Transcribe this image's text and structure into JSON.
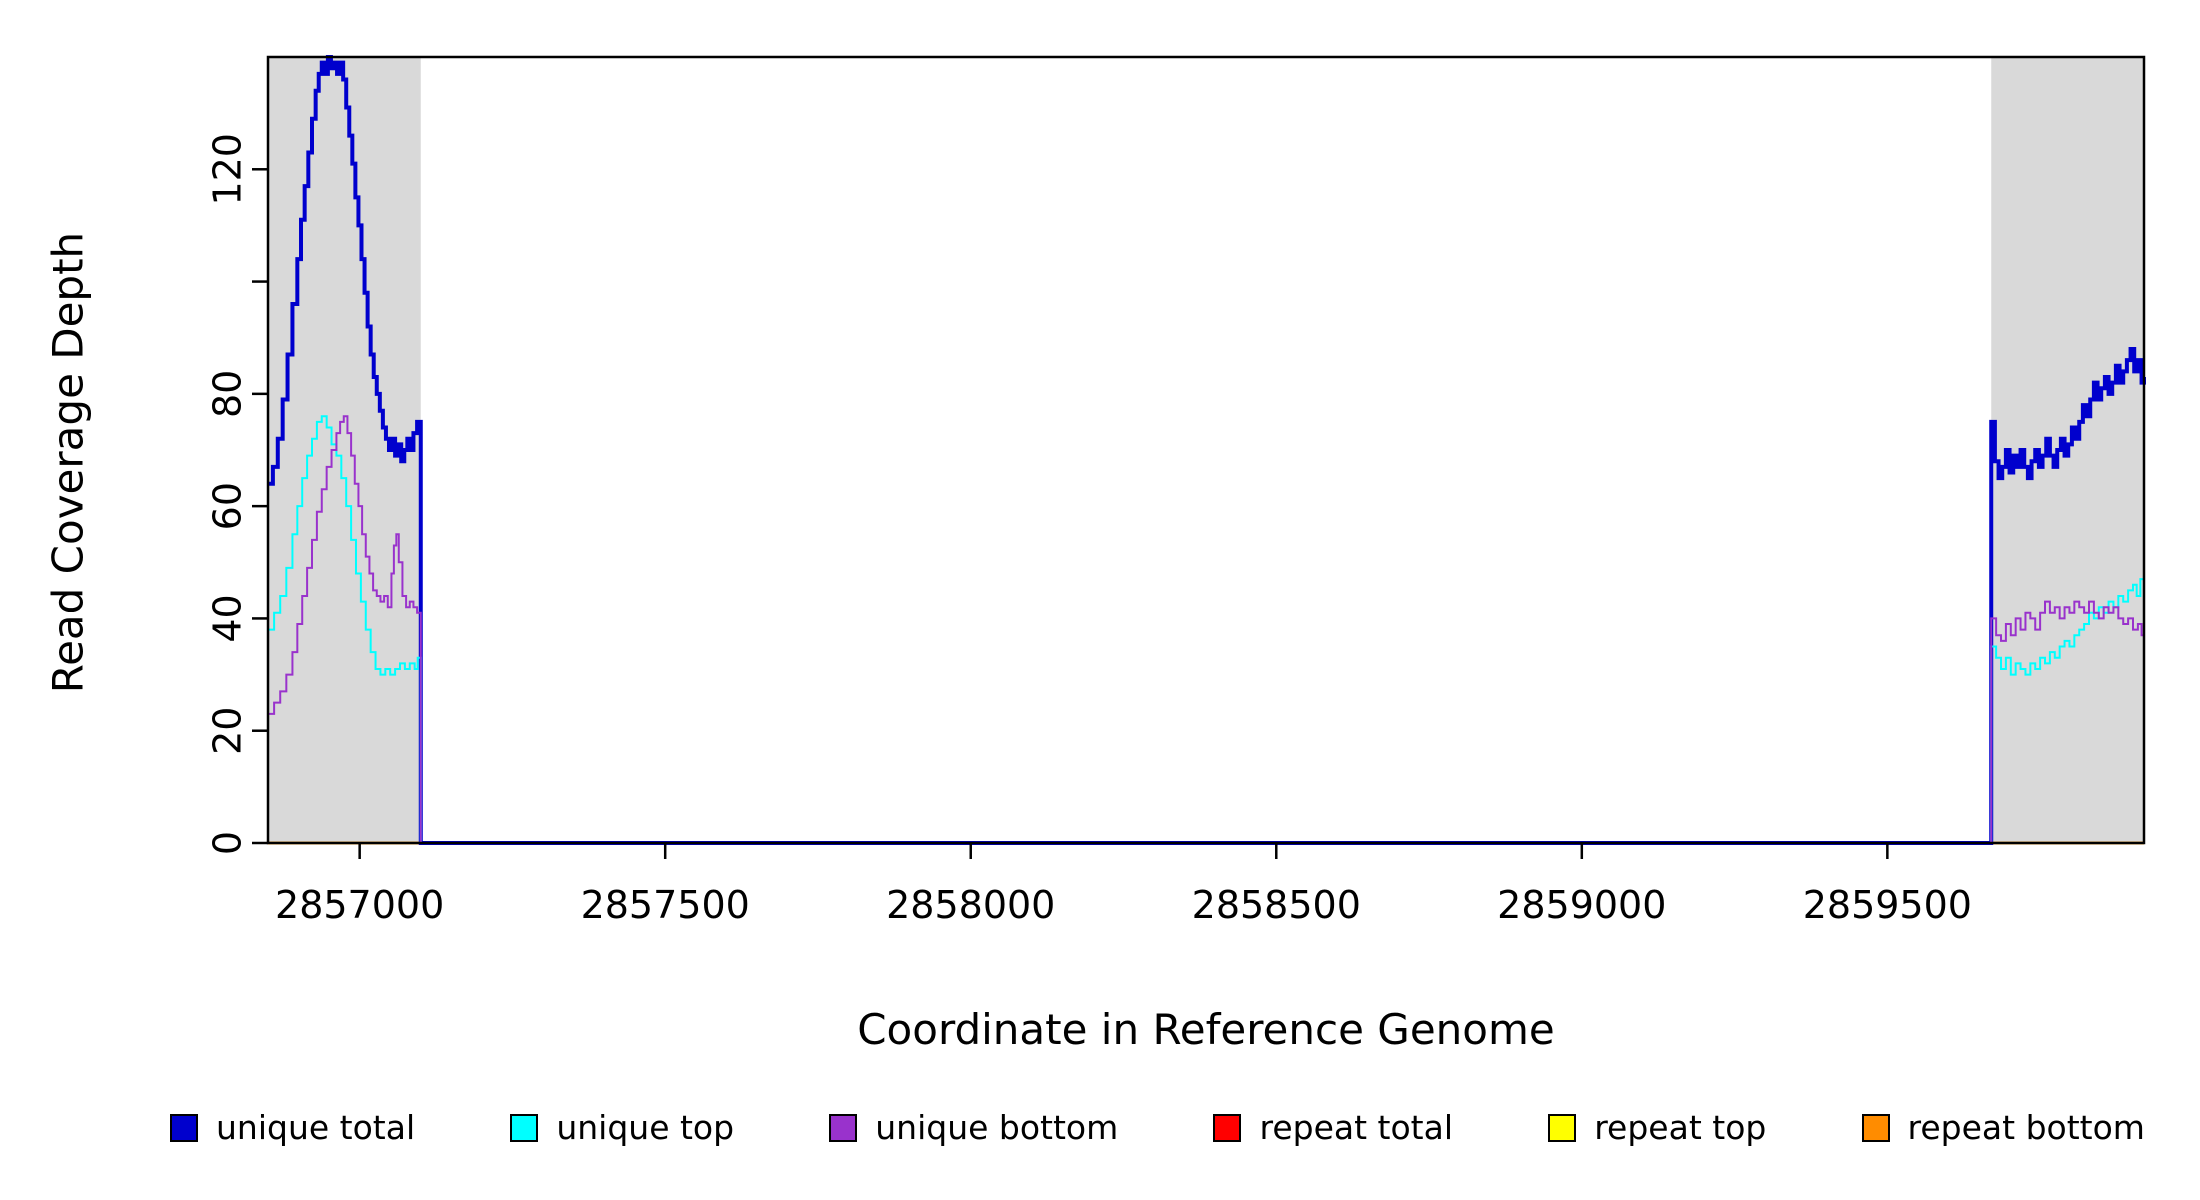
{
  "figure": {
    "background": "#FFFFFF"
  },
  "chart_data": {
    "type": "line",
    "title": "",
    "xlabel": "Coordinate in Reference Genome",
    "ylabel": "Read Coverage Depth",
    "xlim": [
      2856850,
      2859920
    ],
    "ylim": [
      0,
      140
    ],
    "grid": false,
    "legend_position": "bottom",
    "x_ticks": [
      {
        "value": 2857000,
        "label": "2857000"
      },
      {
        "value": 2857500,
        "label": "2857500"
      },
      {
        "value": 2858000,
        "label": "2858000"
      },
      {
        "value": 2858500,
        "label": "2858500"
      },
      {
        "value": 2859000,
        "label": "2859000"
      },
      {
        "value": 2859500,
        "label": "2859500"
      }
    ],
    "y_ticks": [
      {
        "value": 0,
        "label": "0"
      },
      {
        "value": 20,
        "label": "20"
      },
      {
        "value": 40,
        "label": "40"
      },
      {
        "value": 60,
        "label": "60"
      },
      {
        "value": 80,
        "label": "80"
      },
      {
        "value": 100,
        "label": ""
      },
      {
        "value": 120,
        "label": "120"
      }
    ],
    "highlight_color": "#D9D9D9",
    "highlight_regions": [
      {
        "x0": 2856850,
        "x1": 2857100
      },
      {
        "x0": 2859670,
        "x1": 2859920
      }
    ],
    "legend": [
      {
        "label": "unique total",
        "color": "#0000CD"
      },
      {
        "label": "unique top",
        "color": "#00FFFF"
      },
      {
        "label": "unique bottom",
        "color": "#9932CC"
      },
      {
        "label": "repeat total",
        "color": "#FF0000"
      },
      {
        "label": "repeat top",
        "color": "#FFFF00"
      },
      {
        "label": "repeat bottom",
        "color": "#FF8C00"
      }
    ],
    "series": [
      {
        "id": "repeat-total",
        "name": "repeat total",
        "color": "#FF0000",
        "width": 2.5,
        "points": [
          [
            2856850,
            0
          ],
          [
            2859920,
            0
          ]
        ]
      },
      {
        "id": "repeat-top",
        "name": "repeat top",
        "color": "#FFFF00",
        "width": 2.5,
        "points": [
          [
            2856850,
            0
          ],
          [
            2859920,
            0
          ]
        ]
      },
      {
        "id": "repeat-bottom",
        "name": "repeat bottom",
        "color": "#FF8C00",
        "width": 2.5,
        "points": [
          [
            2856850,
            0
          ],
          [
            2859920,
            0
          ]
        ]
      },
      {
        "id": "unique-total",
        "name": "unique total",
        "color": "#0000CD",
        "width": 4,
        "points": [
          [
            2856850,
            64
          ],
          [
            2856858,
            67
          ],
          [
            2856866,
            72
          ],
          [
            2856874,
            79
          ],
          [
            2856882,
            87
          ],
          [
            2856890,
            96
          ],
          [
            2856898,
            104
          ],
          [
            2856904,
            111
          ],
          [
            2856910,
            117
          ],
          [
            2856916,
            123
          ],
          [
            2856922,
            129
          ],
          [
            2856928,
            134
          ],
          [
            2856933,
            137
          ],
          [
            2856938,
            139
          ],
          [
            2856943,
            137
          ],
          [
            2856948,
            140
          ],
          [
            2856953,
            138
          ],
          [
            2856958,
            139
          ],
          [
            2856963,
            137
          ],
          [
            2856968,
            139
          ],
          [
            2856973,
            136
          ],
          [
            2856978,
            131
          ],
          [
            2856983,
            126
          ],
          [
            2856988,
            121
          ],
          [
            2856993,
            115
          ],
          [
            2856998,
            110
          ],
          [
            2857003,
            104
          ],
          [
            2857008,
            98
          ],
          [
            2857013,
            92
          ],
          [
            2857018,
            87
          ],
          [
            2857023,
            83
          ],
          [
            2857028,
            80
          ],
          [
            2857033,
            77
          ],
          [
            2857038,
            74
          ],
          [
            2857043,
            72
          ],
          [
            2857048,
            70
          ],
          [
            2857053,
            72
          ],
          [
            2857058,
            69
          ],
          [
            2857063,
            71
          ],
          [
            2857068,
            68
          ],
          [
            2857073,
            70
          ],
          [
            2857078,
            72
          ],
          [
            2857083,
            70
          ],
          [
            2857088,
            73
          ],
          [
            2857094,
            75
          ],
          [
            2857100,
            0
          ],
          [
            2859670,
            75
          ],
          [
            2859676,
            68
          ],
          [
            2859682,
            65
          ],
          [
            2859688,
            67
          ],
          [
            2859694,
            70
          ],
          [
            2859700,
            66
          ],
          [
            2859706,
            69
          ],
          [
            2859712,
            67
          ],
          [
            2859718,
            70
          ],
          [
            2859724,
            67
          ],
          [
            2859730,
            65
          ],
          [
            2859736,
            68
          ],
          [
            2859742,
            70
          ],
          [
            2859748,
            67
          ],
          [
            2859754,
            69
          ],
          [
            2859760,
            72
          ],
          [
            2859766,
            69
          ],
          [
            2859772,
            67
          ],
          [
            2859778,
            70
          ],
          [
            2859784,
            72
          ],
          [
            2859790,
            69
          ],
          [
            2859796,
            71
          ],
          [
            2859802,
            74
          ],
          [
            2859808,
            72
          ],
          [
            2859814,
            75
          ],
          [
            2859820,
            78
          ],
          [
            2859826,
            76
          ],
          [
            2859832,
            79
          ],
          [
            2859838,
            82
          ],
          [
            2859844,
            79
          ],
          [
            2859850,
            81
          ],
          [
            2859856,
            83
          ],
          [
            2859862,
            80
          ],
          [
            2859868,
            82
          ],
          [
            2859874,
            85
          ],
          [
            2859880,
            82
          ],
          [
            2859886,
            84
          ],
          [
            2859892,
            86
          ],
          [
            2859898,
            88
          ],
          [
            2859904,
            84
          ],
          [
            2859910,
            86
          ],
          [
            2859916,
            82
          ],
          [
            2859920,
            83
          ]
        ]
      },
      {
        "id": "unique-top",
        "name": "unique top",
        "color": "#00FFFF",
        "width": 2,
        "points": [
          [
            2856850,
            38
          ],
          [
            2856860,
            41
          ],
          [
            2856870,
            44
          ],
          [
            2856880,
            49
          ],
          [
            2856890,
            55
          ],
          [
            2856898,
            60
          ],
          [
            2856906,
            65
          ],
          [
            2856914,
            69
          ],
          [
            2856922,
            72
          ],
          [
            2856930,
            75
          ],
          [
            2856938,
            76
          ],
          [
            2856946,
            74
          ],
          [
            2856954,
            71
          ],
          [
            2856962,
            69
          ],
          [
            2856970,
            65
          ],
          [
            2856978,
            60
          ],
          [
            2856986,
            54
          ],
          [
            2856994,
            48
          ],
          [
            2857002,
            43
          ],
          [
            2857010,
            38
          ],
          [
            2857018,
            34
          ],
          [
            2857026,
            31
          ],
          [
            2857034,
            30
          ],
          [
            2857042,
            31
          ],
          [
            2857050,
            30
          ],
          [
            2857058,
            31
          ],
          [
            2857066,
            32
          ],
          [
            2857074,
            31
          ],
          [
            2857082,
            32
          ],
          [
            2857090,
            31
          ],
          [
            2857095,
            33
          ],
          [
            2857100,
            0
          ],
          [
            2859670,
            35
          ],
          [
            2859678,
            33
          ],
          [
            2859686,
            31
          ],
          [
            2859694,
            33
          ],
          [
            2859702,
            30
          ],
          [
            2859710,
            32
          ],
          [
            2859718,
            31
          ],
          [
            2859726,
            30
          ],
          [
            2859734,
            32
          ],
          [
            2859742,
            31
          ],
          [
            2859750,
            33
          ],
          [
            2859758,
            32
          ],
          [
            2859766,
            34
          ],
          [
            2859774,
            33
          ],
          [
            2859782,
            35
          ],
          [
            2859790,
            36
          ],
          [
            2859798,
            35
          ],
          [
            2859806,
            37
          ],
          [
            2859814,
            38
          ],
          [
            2859822,
            39
          ],
          [
            2859830,
            41
          ],
          [
            2859838,
            40
          ],
          [
            2859846,
            42
          ],
          [
            2859854,
            41
          ],
          [
            2859862,
            43
          ],
          [
            2859870,
            42
          ],
          [
            2859878,
            44
          ],
          [
            2859886,
            43
          ],
          [
            2859894,
            45
          ],
          [
            2859902,
            46
          ],
          [
            2859908,
            44
          ],
          [
            2859914,
            47
          ],
          [
            2859920,
            45
          ]
        ]
      },
      {
        "id": "unique-bottom",
        "name": "unique bottom",
        "color": "#9932CC",
        "width": 2,
        "points": [
          [
            2856850,
            23
          ],
          [
            2856860,
            25
          ],
          [
            2856870,
            27
          ],
          [
            2856880,
            30
          ],
          [
            2856890,
            34
          ],
          [
            2856898,
            39
          ],
          [
            2856906,
            44
          ],
          [
            2856914,
            49
          ],
          [
            2856922,
            54
          ],
          [
            2856930,
            59
          ],
          [
            2856938,
            63
          ],
          [
            2856946,
            67
          ],
          [
            2856954,
            70
          ],
          [
            2856962,
            73
          ],
          [
            2856968,
            75
          ],
          [
            2856974,
            76
          ],
          [
            2856980,
            73
          ],
          [
            2856986,
            69
          ],
          [
            2856992,
            64
          ],
          [
            2856998,
            60
          ],
          [
            2857004,
            55
          ],
          [
            2857010,
            51
          ],
          [
            2857016,
            48
          ],
          [
            2857022,
            45
          ],
          [
            2857028,
            44
          ],
          [
            2857034,
            43
          ],
          [
            2857040,
            44
          ],
          [
            2857046,
            42
          ],
          [
            2857052,
            48
          ],
          [
            2857056,
            53
          ],
          [
            2857060,
            55
          ],
          [
            2857064,
            50
          ],
          [
            2857070,
            44
          ],
          [
            2857076,
            42
          ],
          [
            2857082,
            43
          ],
          [
            2857088,
            42
          ],
          [
            2857094,
            41
          ],
          [
            2857100,
            0
          ],
          [
            2859670,
            40
          ],
          [
            2859678,
            37
          ],
          [
            2859686,
            36
          ],
          [
            2859694,
            39
          ],
          [
            2859702,
            37
          ],
          [
            2859710,
            40
          ],
          [
            2859718,
            38
          ],
          [
            2859726,
            41
          ],
          [
            2859734,
            40
          ],
          [
            2859742,
            38
          ],
          [
            2859750,
            41
          ],
          [
            2859758,
            43
          ],
          [
            2859766,
            41
          ],
          [
            2859774,
            42
          ],
          [
            2859782,
            40
          ],
          [
            2859790,
            42
          ],
          [
            2859798,
            41
          ],
          [
            2859806,
            43
          ],
          [
            2859814,
            42
          ],
          [
            2859822,
            41
          ],
          [
            2859830,
            43
          ],
          [
            2859838,
            41
          ],
          [
            2859846,
            40
          ],
          [
            2859854,
            42
          ],
          [
            2859862,
            41
          ],
          [
            2859870,
            42
          ],
          [
            2859878,
            40
          ],
          [
            2859886,
            39
          ],
          [
            2859894,
            40
          ],
          [
            2859902,
            38
          ],
          [
            2859910,
            39
          ],
          [
            2859916,
            37
          ],
          [
            2859920,
            38
          ]
        ]
      }
    ]
  }
}
